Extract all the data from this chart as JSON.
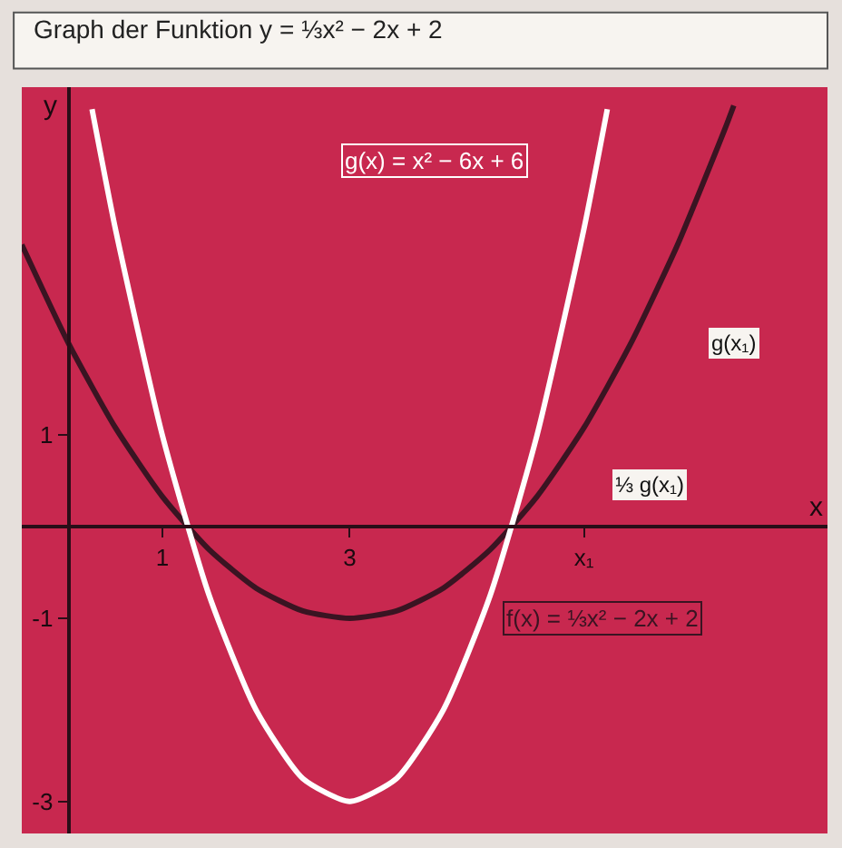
{
  "chart_data": {
    "type": "line",
    "title": "Graph der Funktion y = ⅓x² − 2x + 2",
    "xlabel": "x",
    "ylabel": "y",
    "xlim": [
      -0.5,
      8.1
    ],
    "ylim": [
      -3.35,
      4.8
    ],
    "xticks": [
      1,
      3,
      {
        "value": 5.5,
        "label": "x₁"
      }
    ],
    "yticks": [
      -3,
      -1,
      1
    ],
    "grid": false,
    "legend": false,
    "marker": "none",
    "line_style": "solid",
    "series": [
      {
        "name": "f(x) = ⅓x² − 2x + 2",
        "color": "#3a1422",
        "x": [
          -0.5,
          0,
          0.5,
          1,
          1.5,
          2,
          2.5,
          3,
          3.5,
          4,
          4.5,
          5,
          5.5,
          6,
          6.5,
          7,
          7.1
        ],
        "values": [
          3.08,
          2,
          1.08,
          0.33,
          -0.25,
          -0.67,
          -0.92,
          -1,
          -0.92,
          -0.67,
          -0.25,
          0.33,
          1.08,
          2,
          3.08,
          4.33,
          4.6
        ]
      },
      {
        "name": "g(x) = x² − 6x + 6",
        "color": "#ffffff",
        "x": [
          0.25,
          0.5,
          1,
          1.5,
          2,
          2.5,
          3,
          3.5,
          4,
          4.5,
          5,
          5.5,
          5.75
        ],
        "values": [
          4.56,
          3.25,
          1,
          -0.75,
          -2,
          -2.75,
          -3,
          -2.75,
          -2,
          -0.75,
          1,
          3.25,
          4.56
        ]
      }
    ],
    "annotations": [
      {
        "text": "g(x₁)",
        "x": 7.1,
        "y": 2
      },
      {
        "text": "⅓ g(x₁)",
        "x": 6.2,
        "y": 0.45
      }
    ]
  }
}
